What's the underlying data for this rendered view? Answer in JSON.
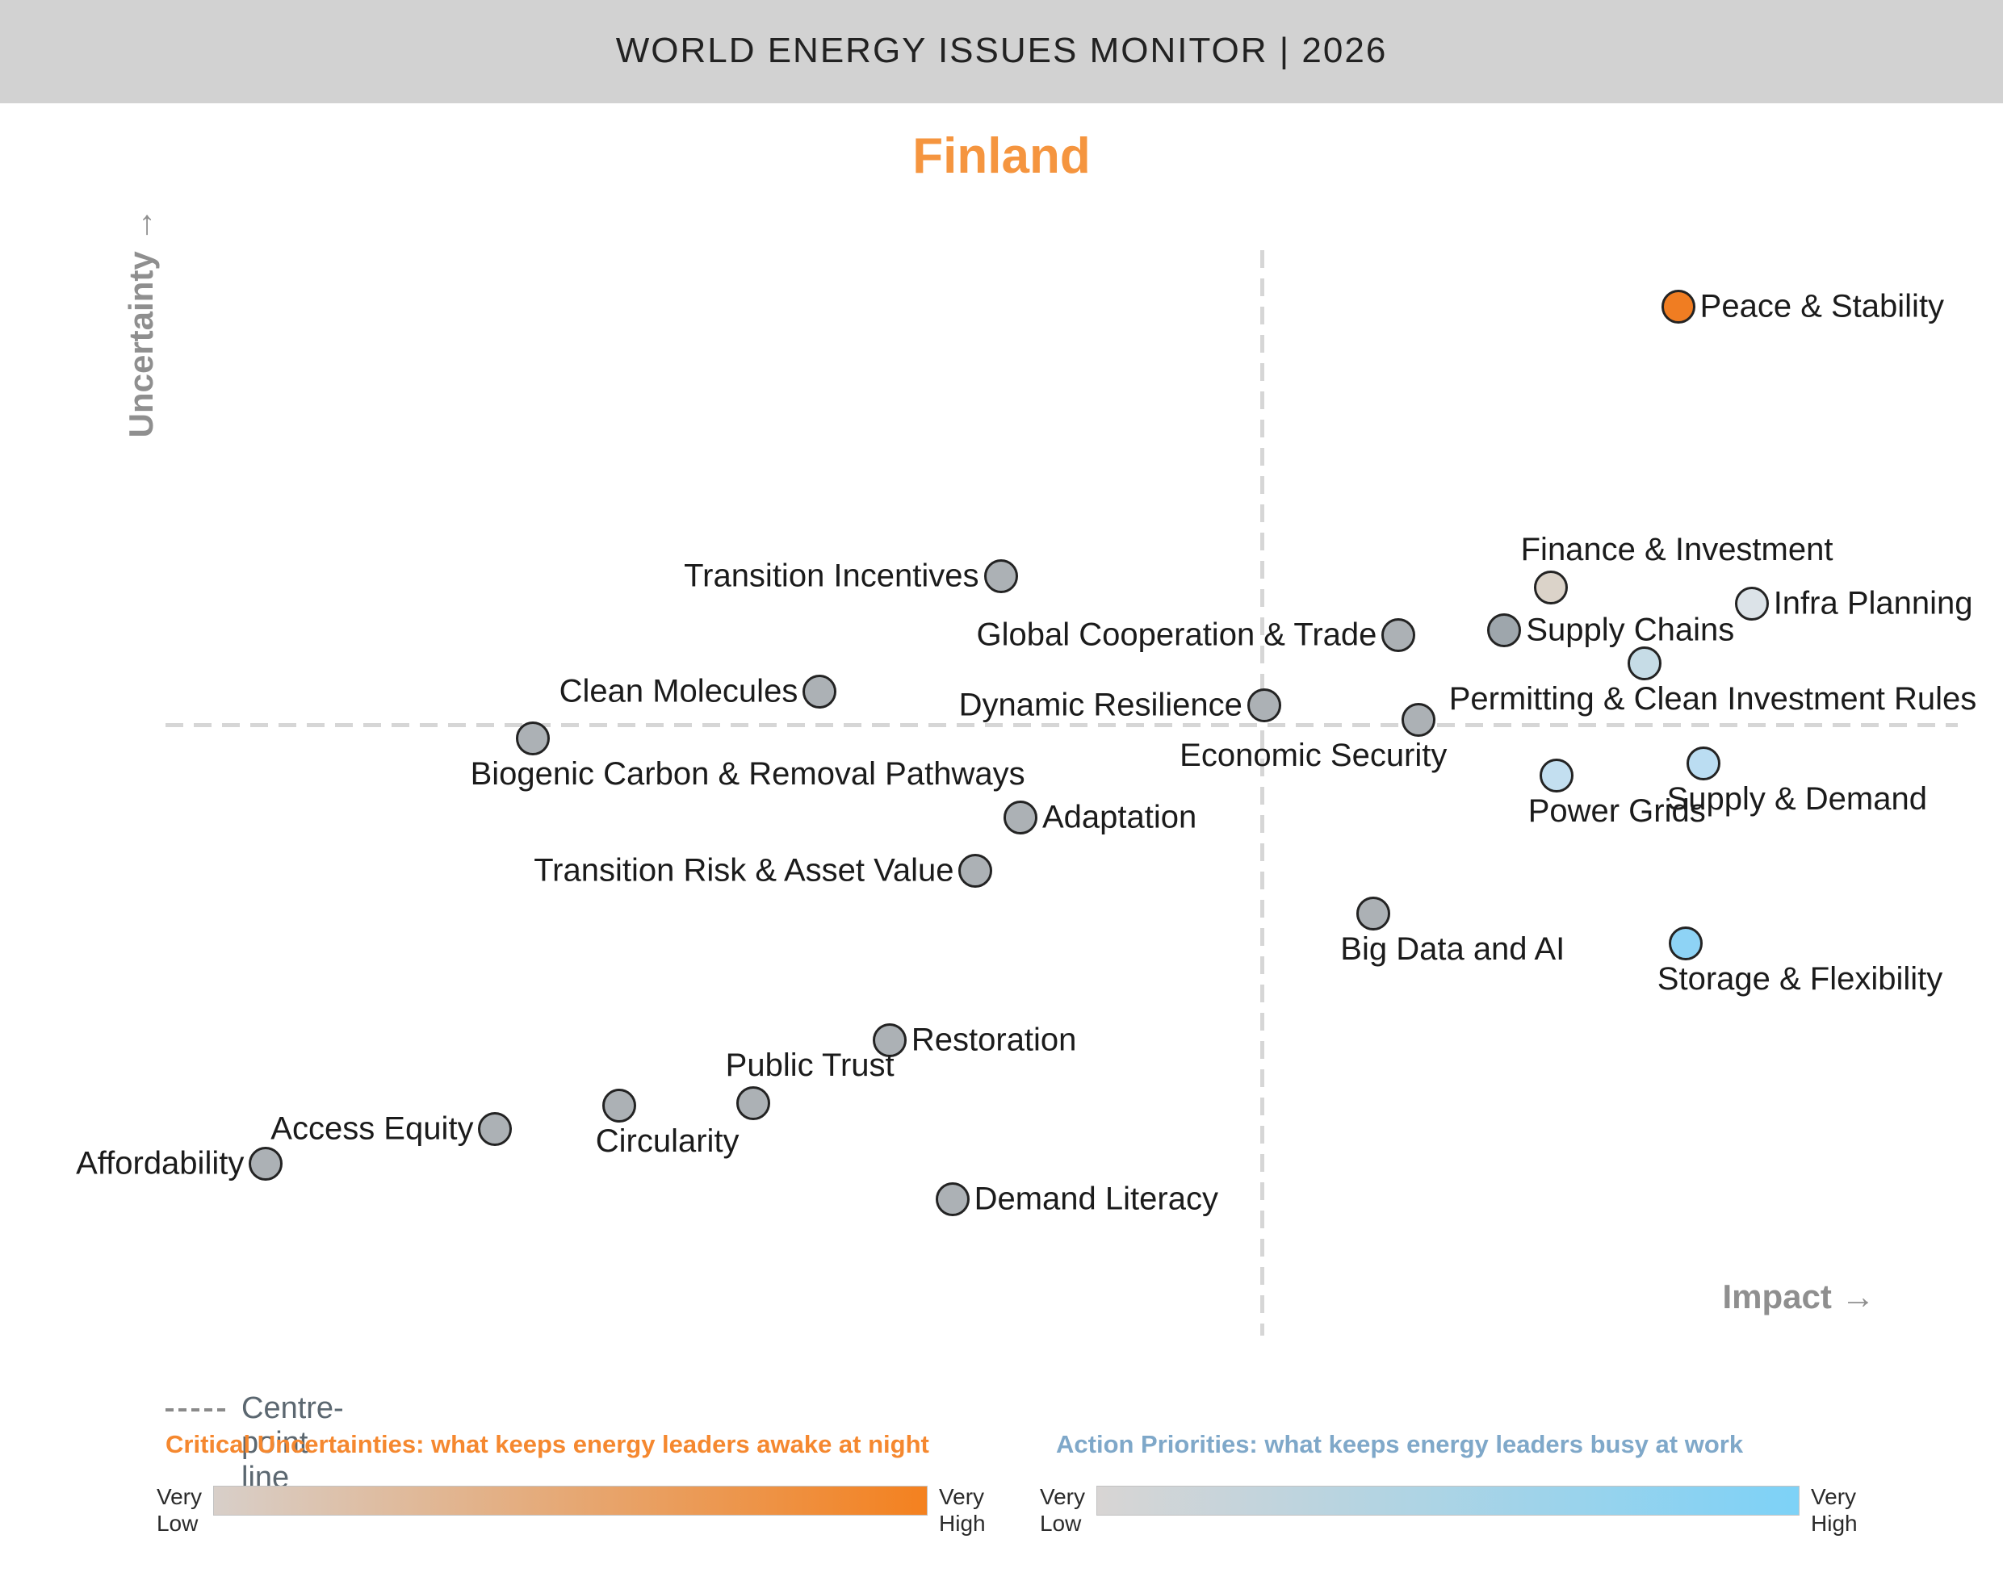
{
  "header": {
    "title": "WORLD ENERGY ISSUES MONITOR | 2026"
  },
  "country": "Finland",
  "axes": {
    "y_label": "Uncertainty →",
    "x_label": "Impact →"
  },
  "colors": {
    "header_bar": "#D2D2D2",
    "country_accent": "#F5953F",
    "dashed_line": "#D6D6D6",
    "axis_label": "#8F8F8F",
    "neutral_dot": "#ACB1B5",
    "critical_high_dot": "#F07D22",
    "action_high_dot": "#8ED3F5"
  },
  "legend": {
    "centre_point_label": "Centre-point line",
    "critical": {
      "heading": "Critical Uncertainties: what keeps energy leaders awake at night",
      "low": "Very\nLow",
      "high": "Very\nHigh",
      "gradient_start": "#D8CFC9",
      "gradient_end": "#F4811F"
    },
    "action": {
      "heading": "Action Priorities: what keeps energy leaders busy at work",
      "low": "Very\nLow",
      "high": "Very\nHigh",
      "gradient_start": "#D8D5D4",
      "gradient_end": "#7DD2F7"
    }
  },
  "chart_data": {
    "type": "scatter",
    "title": "World Energy Issues Monitor 2026 - Finland",
    "xlabel": "Impact",
    "ylabel": "Uncertainty",
    "xlim": [
      0,
      100
    ],
    "ylim": [
      0,
      100
    ],
    "centre_lines": {
      "x": 61.2,
      "y": 55.6
    },
    "grid": false,
    "legend_position": "bottom",
    "points": [
      {
        "label": "Peace & Stability",
        "impact": 84.4,
        "uncertainty": 94.8,
        "category": "critical",
        "fill": "#F07D22",
        "label_side": "right",
        "label_dx": 0
      },
      {
        "label": "Transition Incentives",
        "impact": 46.6,
        "uncertainty": 70.0,
        "category": "neutral",
        "fill": "#ACB1B5",
        "label_side": "left",
        "label_dx": 0
      },
      {
        "label": "Finance & Investment",
        "impact": 77.3,
        "uncertainty": 68.9,
        "category": "critical",
        "fill": "#DBD3C9",
        "label_side": "above",
        "label_dx": 156
      },
      {
        "label": "Infra Planning",
        "impact": 88.5,
        "uncertainty": 67.4,
        "category": "action",
        "fill": "#DCE3E8",
        "label_side": "right",
        "label_dx": 0
      },
      {
        "label": "Supply Chains",
        "impact": 74.7,
        "uncertainty": 65.0,
        "category": "neutral",
        "fill": "#9EA6AC",
        "label_side": "right",
        "label_dx": 0
      },
      {
        "label": "Global Cooperation & Trade",
        "impact": 68.8,
        "uncertainty": 64.5,
        "category": "neutral",
        "fill": "#ACB1B5",
        "label_side": "left",
        "label_dx": 0
      },
      {
        "label": "Permitting & Clean Investment Rules",
        "impact": 82.5,
        "uncertainty": 61.9,
        "category": "action",
        "fill": "#C6DCE6",
        "label_side": "below",
        "label_dx": 85
      },
      {
        "label": "Clean Molecules",
        "impact": 36.5,
        "uncertainty": 59.3,
        "category": "neutral",
        "fill": "#ACB1B5",
        "label_side": "left",
        "label_dx": 0
      },
      {
        "label": "Dynamic Resilience",
        "impact": 61.3,
        "uncertainty": 58.1,
        "category": "neutral",
        "fill": "#ACB1B5",
        "label_side": "left",
        "label_dx": 0
      },
      {
        "label": "Economic Security",
        "impact": 69.9,
        "uncertainty": 56.7,
        "category": "neutral",
        "fill": "#ACB1B5",
        "label_side": "below",
        "label_dx": -130
      },
      {
        "label": "Biogenic Carbon & Removal Pathways",
        "impact": 20.5,
        "uncertainty": 55.0,
        "category": "neutral",
        "fill": "#ACB1B5",
        "label_side": "below",
        "label_dx": 266
      },
      {
        "label": "Supply & Demand",
        "impact": 85.8,
        "uncertainty": 52.7,
        "category": "action",
        "fill": "#BBDDF2",
        "label_side": "below",
        "label_dx": 116
      },
      {
        "label": "Power Grids",
        "impact": 77.6,
        "uncertainty": 51.6,
        "category": "action",
        "fill": "#C3DFF0",
        "label_side": "below",
        "label_dx": 75
      },
      {
        "label": "Adaptation",
        "impact": 47.7,
        "uncertainty": 47.7,
        "category": "neutral",
        "fill": "#ACB1B5",
        "label_side": "right",
        "label_dx": 0
      },
      {
        "label": "Transition Risk & Asset Value",
        "impact": 45.2,
        "uncertainty": 42.8,
        "category": "neutral",
        "fill": "#ACB1B5",
        "label_side": "left",
        "label_dx": 0
      },
      {
        "label": "Big Data and AI",
        "impact": 67.4,
        "uncertainty": 38.9,
        "category": "neutral",
        "fill": "#ACB1B5",
        "label_side": "below",
        "label_dx": 98
      },
      {
        "label": "Storage & Flexibility",
        "impact": 84.8,
        "uncertainty": 36.1,
        "category": "action",
        "fill": "#8ED3F5",
        "label_side": "below",
        "label_dx": 142
      },
      {
        "label": "Restoration",
        "impact": 40.4,
        "uncertainty": 27.2,
        "category": "neutral",
        "fill": "#ACB1B5",
        "label_side": "right",
        "label_dx": 0
      },
      {
        "label": "Public Trust",
        "impact": 32.8,
        "uncertainty": 21.4,
        "category": "neutral",
        "fill": "#ACB1B5",
        "label_side": "above",
        "label_dx": 70
      },
      {
        "label": "Circularity",
        "impact": 25.3,
        "uncertainty": 21.2,
        "category": "neutral",
        "fill": "#ACB1B5",
        "label_side": "below",
        "label_dx": 60
      },
      {
        "label": "Access Equity",
        "impact": 18.4,
        "uncertainty": 19.0,
        "category": "neutral",
        "fill": "#ACB1B5",
        "label_side": "left",
        "label_dx": 0
      },
      {
        "label": "Affordability",
        "impact": 5.6,
        "uncertainty": 15.8,
        "category": "neutral",
        "fill": "#ACB1B5",
        "label_side": "left",
        "label_dx": 0
      },
      {
        "label": "Demand Literacy",
        "impact": 43.9,
        "uncertainty": 12.6,
        "category": "neutral",
        "fill": "#ACB1B5",
        "label_side": "right",
        "label_dx": 0
      }
    ]
  }
}
